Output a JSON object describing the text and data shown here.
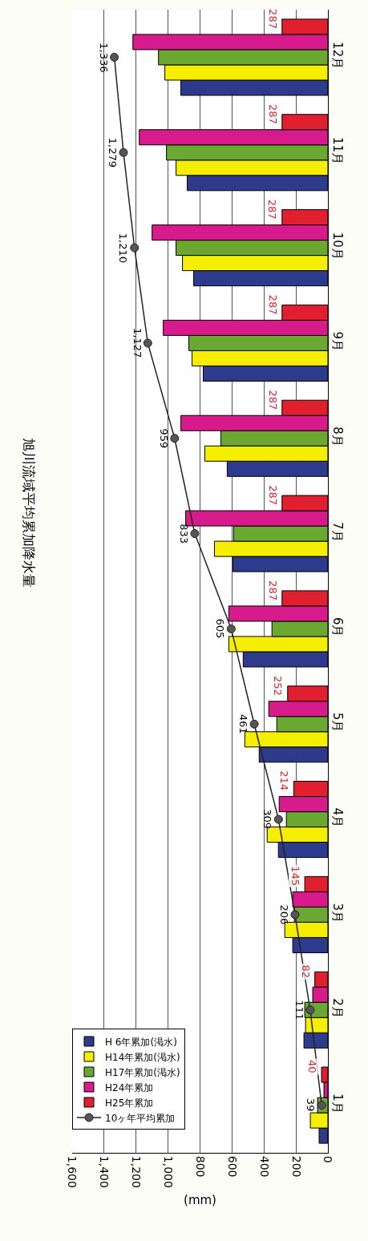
{
  "chart_data": {
    "type": "bar",
    "orientation": "horizontal",
    "title": "旭川流域平均累加降水量",
    "xlabel": "(mm)",
    "categories": [
      "12月",
      "11月",
      "10月",
      "9月",
      "8月",
      "7月",
      "6月",
      "5月",
      "4月",
      "3月",
      "2月",
      "1月"
    ],
    "xlim": [
      1600,
      0
    ],
    "xticks": [
      {
        "value": 1600,
        "label": "1,600"
      },
      {
        "value": 1400,
        "label": "1,400"
      },
      {
        "value": 1200,
        "label": "1,200"
      },
      {
        "value": 1000,
        "label": "1,000"
      },
      800,
      600,
      400,
      200,
      0
    ],
    "grid": "x",
    "legend": "bottom left",
    "series": [
      {
        "name": "H 6年累加(渇水)",
        "color": "#2e3a8c",
        "values": [
          920,
          880,
          840,
          780,
          630,
          595,
          530,
          430,
          310,
          220,
          150,
          55
        ]
      },
      {
        "name": "H14年累加(渇水)",
        "color": "#f5ee00",
        "values": [
          1020,
          950,
          910,
          850,
          770,
          710,
          620,
          520,
          380,
          270,
          140,
          110
        ]
      },
      {
        "name": "H17年累加(渇水)",
        "color": "#6aa832",
        "values": [
          1060,
          1010,
          950,
          870,
          670,
          590,
          350,
          320,
          260,
          210,
          145,
          65
        ]
      },
      {
        "name": "H24年累加",
        "color": "#d81b8c",
        "values": [
          1220,
          1180,
          1100,
          1030,
          920,
          890,
          620,
          370,
          305,
          220,
          95,
          25
        ]
      },
      {
        "name": "H25年累加",
        "color": "#e0202e",
        "values": [
          287,
          287,
          287,
          287,
          287,
          287,
          287,
          252,
          214,
          145,
          82,
          40
        ],
        "value_labels": [
          "287",
          "287",
          "287",
          "287",
          "287",
          "287",
          "287",
          "252",
          "214",
          "145",
          "82",
          "40"
        ]
      },
      {
        "name": "10ヶ年平均累加",
        "type": "line",
        "marker": "circle",
        "color": "#222222",
        "values": [
          1336,
          1279,
          1210,
          1127,
          959,
          833,
          605,
          461,
          309,
          206,
          111,
          39
        ],
        "value_labels": [
          "1,336",
          "1,279",
          "1,210",
          "1,127",
          "959",
          "833",
          "605",
          "461",
          "309",
          "206",
          "111",
          "39"
        ]
      }
    ]
  }
}
